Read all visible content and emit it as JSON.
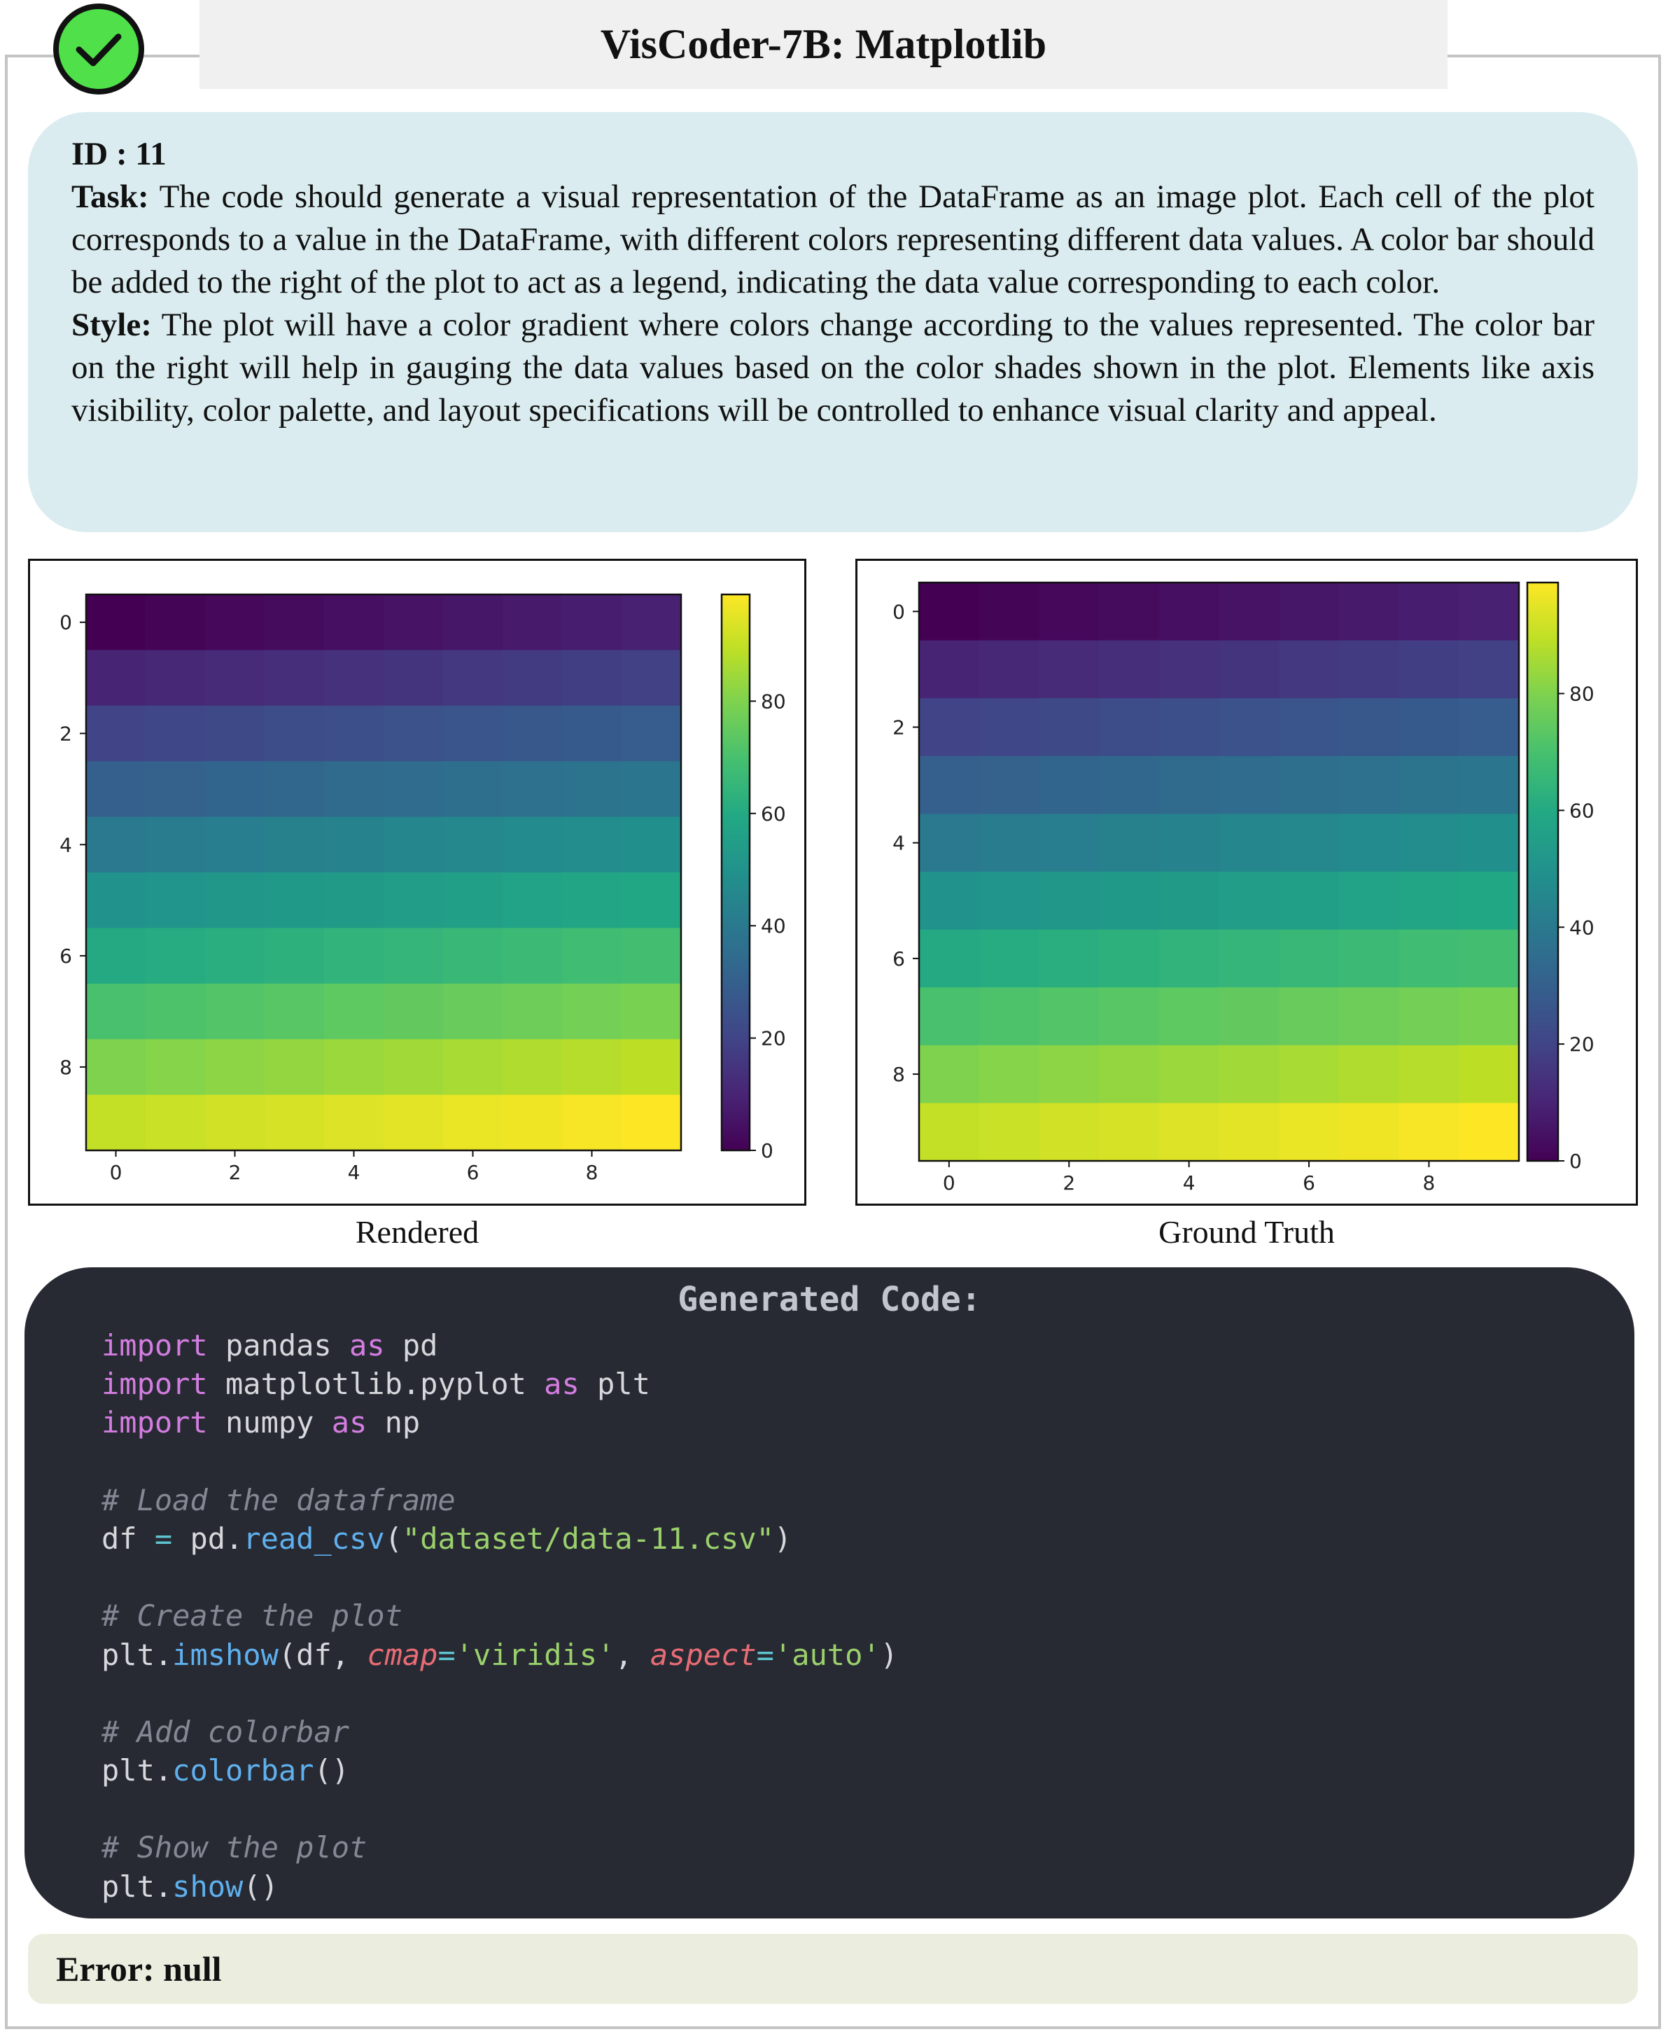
{
  "header": {
    "title": "VisCoder-7B: Matplotlib",
    "status_icon": "check-circle-icon",
    "status_color": "#4fe04a"
  },
  "task": {
    "id_label": "ID : 11",
    "task_label": "Task:",
    "task_text": " The code should generate a visual representation of the DataFrame as an image plot. Each cell of the plot corresponds to a value in the DataFrame, with different colors representing different data values. A color bar should be added to the right of the plot to act as a legend, indicating the data value corresponding to each color.",
    "style_label": "Style:",
    "style_text": " The plot will have a color gradient where colors change according to the values represented. The color bar on the right will help in gauging the data values based on the color shades shown in the plot. Elements like axis visibility, color palette, and layout specifications will be controlled to enhance visual clarity and appeal."
  },
  "captions": {
    "rendered": "Rendered",
    "ground_truth": "Ground Truth"
  },
  "chart_data": [
    {
      "type": "heatmap",
      "name": "Rendered",
      "colormap": "viridis",
      "rows": 10,
      "cols": 10,
      "values": [
        [
          0,
          1,
          2,
          3,
          4,
          5,
          6,
          7,
          8,
          9
        ],
        [
          10,
          11,
          12,
          13,
          14,
          15,
          16,
          17,
          18,
          19
        ],
        [
          20,
          21,
          22,
          23,
          24,
          25,
          26,
          27,
          28,
          29
        ],
        [
          30,
          31,
          32,
          33,
          34,
          35,
          36,
          37,
          38,
          39
        ],
        [
          40,
          41,
          42,
          43,
          44,
          45,
          46,
          47,
          48,
          49
        ],
        [
          50,
          51,
          52,
          53,
          54,
          55,
          56,
          57,
          58,
          59
        ],
        [
          60,
          61,
          62,
          63,
          64,
          65,
          66,
          67,
          68,
          69
        ],
        [
          70,
          71,
          72,
          73,
          74,
          75,
          76,
          77,
          78,
          79
        ],
        [
          80,
          81,
          82,
          83,
          84,
          85,
          86,
          87,
          88,
          89
        ],
        [
          90,
          91,
          92,
          93,
          94,
          95,
          96,
          97,
          98,
          99
        ]
      ],
      "xticks": [
        "0",
        "2",
        "4",
        "6",
        "8"
      ],
      "yticks": [
        "0",
        "2",
        "4",
        "6",
        "8"
      ],
      "colorbar_ticks": [
        "0",
        "20",
        "40",
        "60",
        "80"
      ],
      "colorbar_range": [
        0,
        99
      ]
    },
    {
      "type": "heatmap",
      "name": "Ground Truth",
      "colormap": "viridis",
      "rows": 10,
      "cols": 10,
      "values": [
        [
          0,
          1,
          2,
          3,
          4,
          5,
          6,
          7,
          8,
          9
        ],
        [
          10,
          11,
          12,
          13,
          14,
          15,
          16,
          17,
          18,
          19
        ],
        [
          20,
          21,
          22,
          23,
          24,
          25,
          26,
          27,
          28,
          29
        ],
        [
          30,
          31,
          32,
          33,
          34,
          35,
          36,
          37,
          38,
          39
        ],
        [
          40,
          41,
          42,
          43,
          44,
          45,
          46,
          47,
          48,
          49
        ],
        [
          50,
          51,
          52,
          53,
          54,
          55,
          56,
          57,
          58,
          59
        ],
        [
          60,
          61,
          62,
          63,
          64,
          65,
          66,
          67,
          68,
          69
        ],
        [
          70,
          71,
          72,
          73,
          74,
          75,
          76,
          77,
          78,
          79
        ],
        [
          80,
          81,
          82,
          83,
          84,
          85,
          86,
          87,
          88,
          89
        ],
        [
          90,
          91,
          92,
          93,
          94,
          95,
          96,
          97,
          98,
          99
        ]
      ],
      "xticks": [
        "0",
        "2",
        "4",
        "6",
        "8"
      ],
      "yticks": [
        "0",
        "2",
        "4",
        "6",
        "8"
      ],
      "colorbar_ticks": [
        "0",
        "20",
        "40",
        "60",
        "80"
      ],
      "colorbar_range": [
        0,
        99
      ]
    }
  ],
  "code": {
    "title": "Generated Code:",
    "lines": [
      [
        [
          "kw",
          "import"
        ],
        [
          "tx",
          " pandas "
        ],
        [
          "kw",
          "as"
        ],
        [
          "tx",
          " pd"
        ]
      ],
      [
        [
          "kw",
          "import"
        ],
        [
          "tx",
          " matplotlib.pyplot "
        ],
        [
          "kw",
          "as"
        ],
        [
          "tx",
          " plt"
        ]
      ],
      [
        [
          "kw",
          "import"
        ],
        [
          "tx",
          " numpy "
        ],
        [
          "kw",
          "as"
        ],
        [
          "tx",
          " np"
        ]
      ],
      [],
      [
        [
          "cm",
          "# Load the dataframe"
        ]
      ],
      [
        [
          "tx",
          "df "
        ],
        [
          "op",
          "="
        ],
        [
          "tx",
          " pd."
        ],
        [
          "fn",
          "read_csv"
        ],
        [
          "tx",
          "("
        ],
        [
          "st",
          "\"dataset/data-11.csv\""
        ],
        [
          "tx",
          ")"
        ]
      ],
      [],
      [
        [
          "cm",
          "# Create the plot"
        ]
      ],
      [
        [
          "tx",
          "plt."
        ],
        [
          "fn",
          "imshow"
        ],
        [
          "tx",
          "(df, "
        ],
        [
          "pa",
          "cmap"
        ],
        [
          "op",
          "="
        ],
        [
          "st",
          "'viridis'"
        ],
        [
          "tx",
          ", "
        ],
        [
          "pa",
          "aspect"
        ],
        [
          "op",
          "="
        ],
        [
          "st",
          "'auto'"
        ],
        [
          "tx",
          ")"
        ]
      ],
      [],
      [
        [
          "cm",
          "# Add colorbar"
        ]
      ],
      [
        [
          "tx",
          "plt."
        ],
        [
          "fn",
          "colorbar"
        ],
        [
          "tx",
          "()"
        ]
      ],
      [],
      [
        [
          "cm",
          "# Show the plot"
        ]
      ],
      [
        [
          "tx",
          "plt."
        ],
        [
          "fn",
          "show"
        ],
        [
          "tx",
          "()"
        ]
      ]
    ]
  },
  "error": {
    "text": "Error: null"
  }
}
